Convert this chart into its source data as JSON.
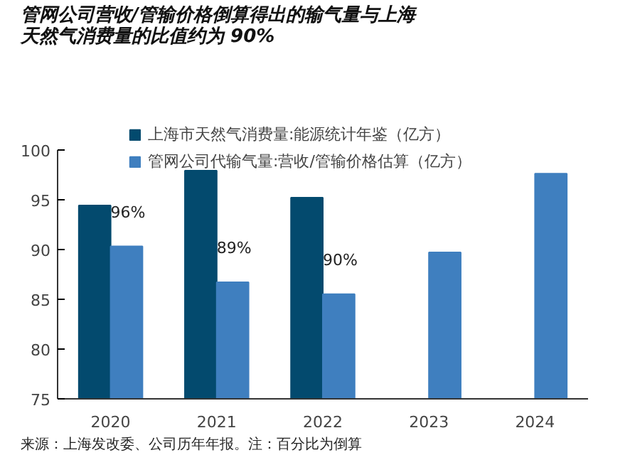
{
  "chart_data": {
    "type": "bar",
    "title": "管网公司营收/管输价格倒算得出的输气量与上海天然气消费量的比值约为 90%",
    "categories": [
      "2020",
      "2021",
      "2022",
      "2023",
      "2024"
    ],
    "series": [
      {
        "name": "上海市天然气消费量:能源统计年鉴（亿方）",
        "color": "#034a6e",
        "values": [
          94.4,
          97.9,
          95.2,
          null,
          null
        ]
      },
      {
        "name": "管网公司代输气量:营收/管输价格估算（亿方）",
        "color": "#3f7fbf",
        "values": [
          90.3,
          86.7,
          85.5,
          89.7,
          97.6
        ]
      }
    ],
    "ylim": [
      75,
      100
    ],
    "yticks": [
      75,
      80,
      85,
      90,
      95,
      100
    ],
    "grid": false,
    "legend": "top",
    "annotations": [
      {
        "text": "96%",
        "x": "2020",
        "y": 92.8
      },
      {
        "text": "89%",
        "x": "2021",
        "y": 89.2
      },
      {
        "text": "90%",
        "x": "2022",
        "y": 88.0
      },
      "来源：上海发改委、公司历年年报。注：百分比为倒算"
    ]
  }
}
